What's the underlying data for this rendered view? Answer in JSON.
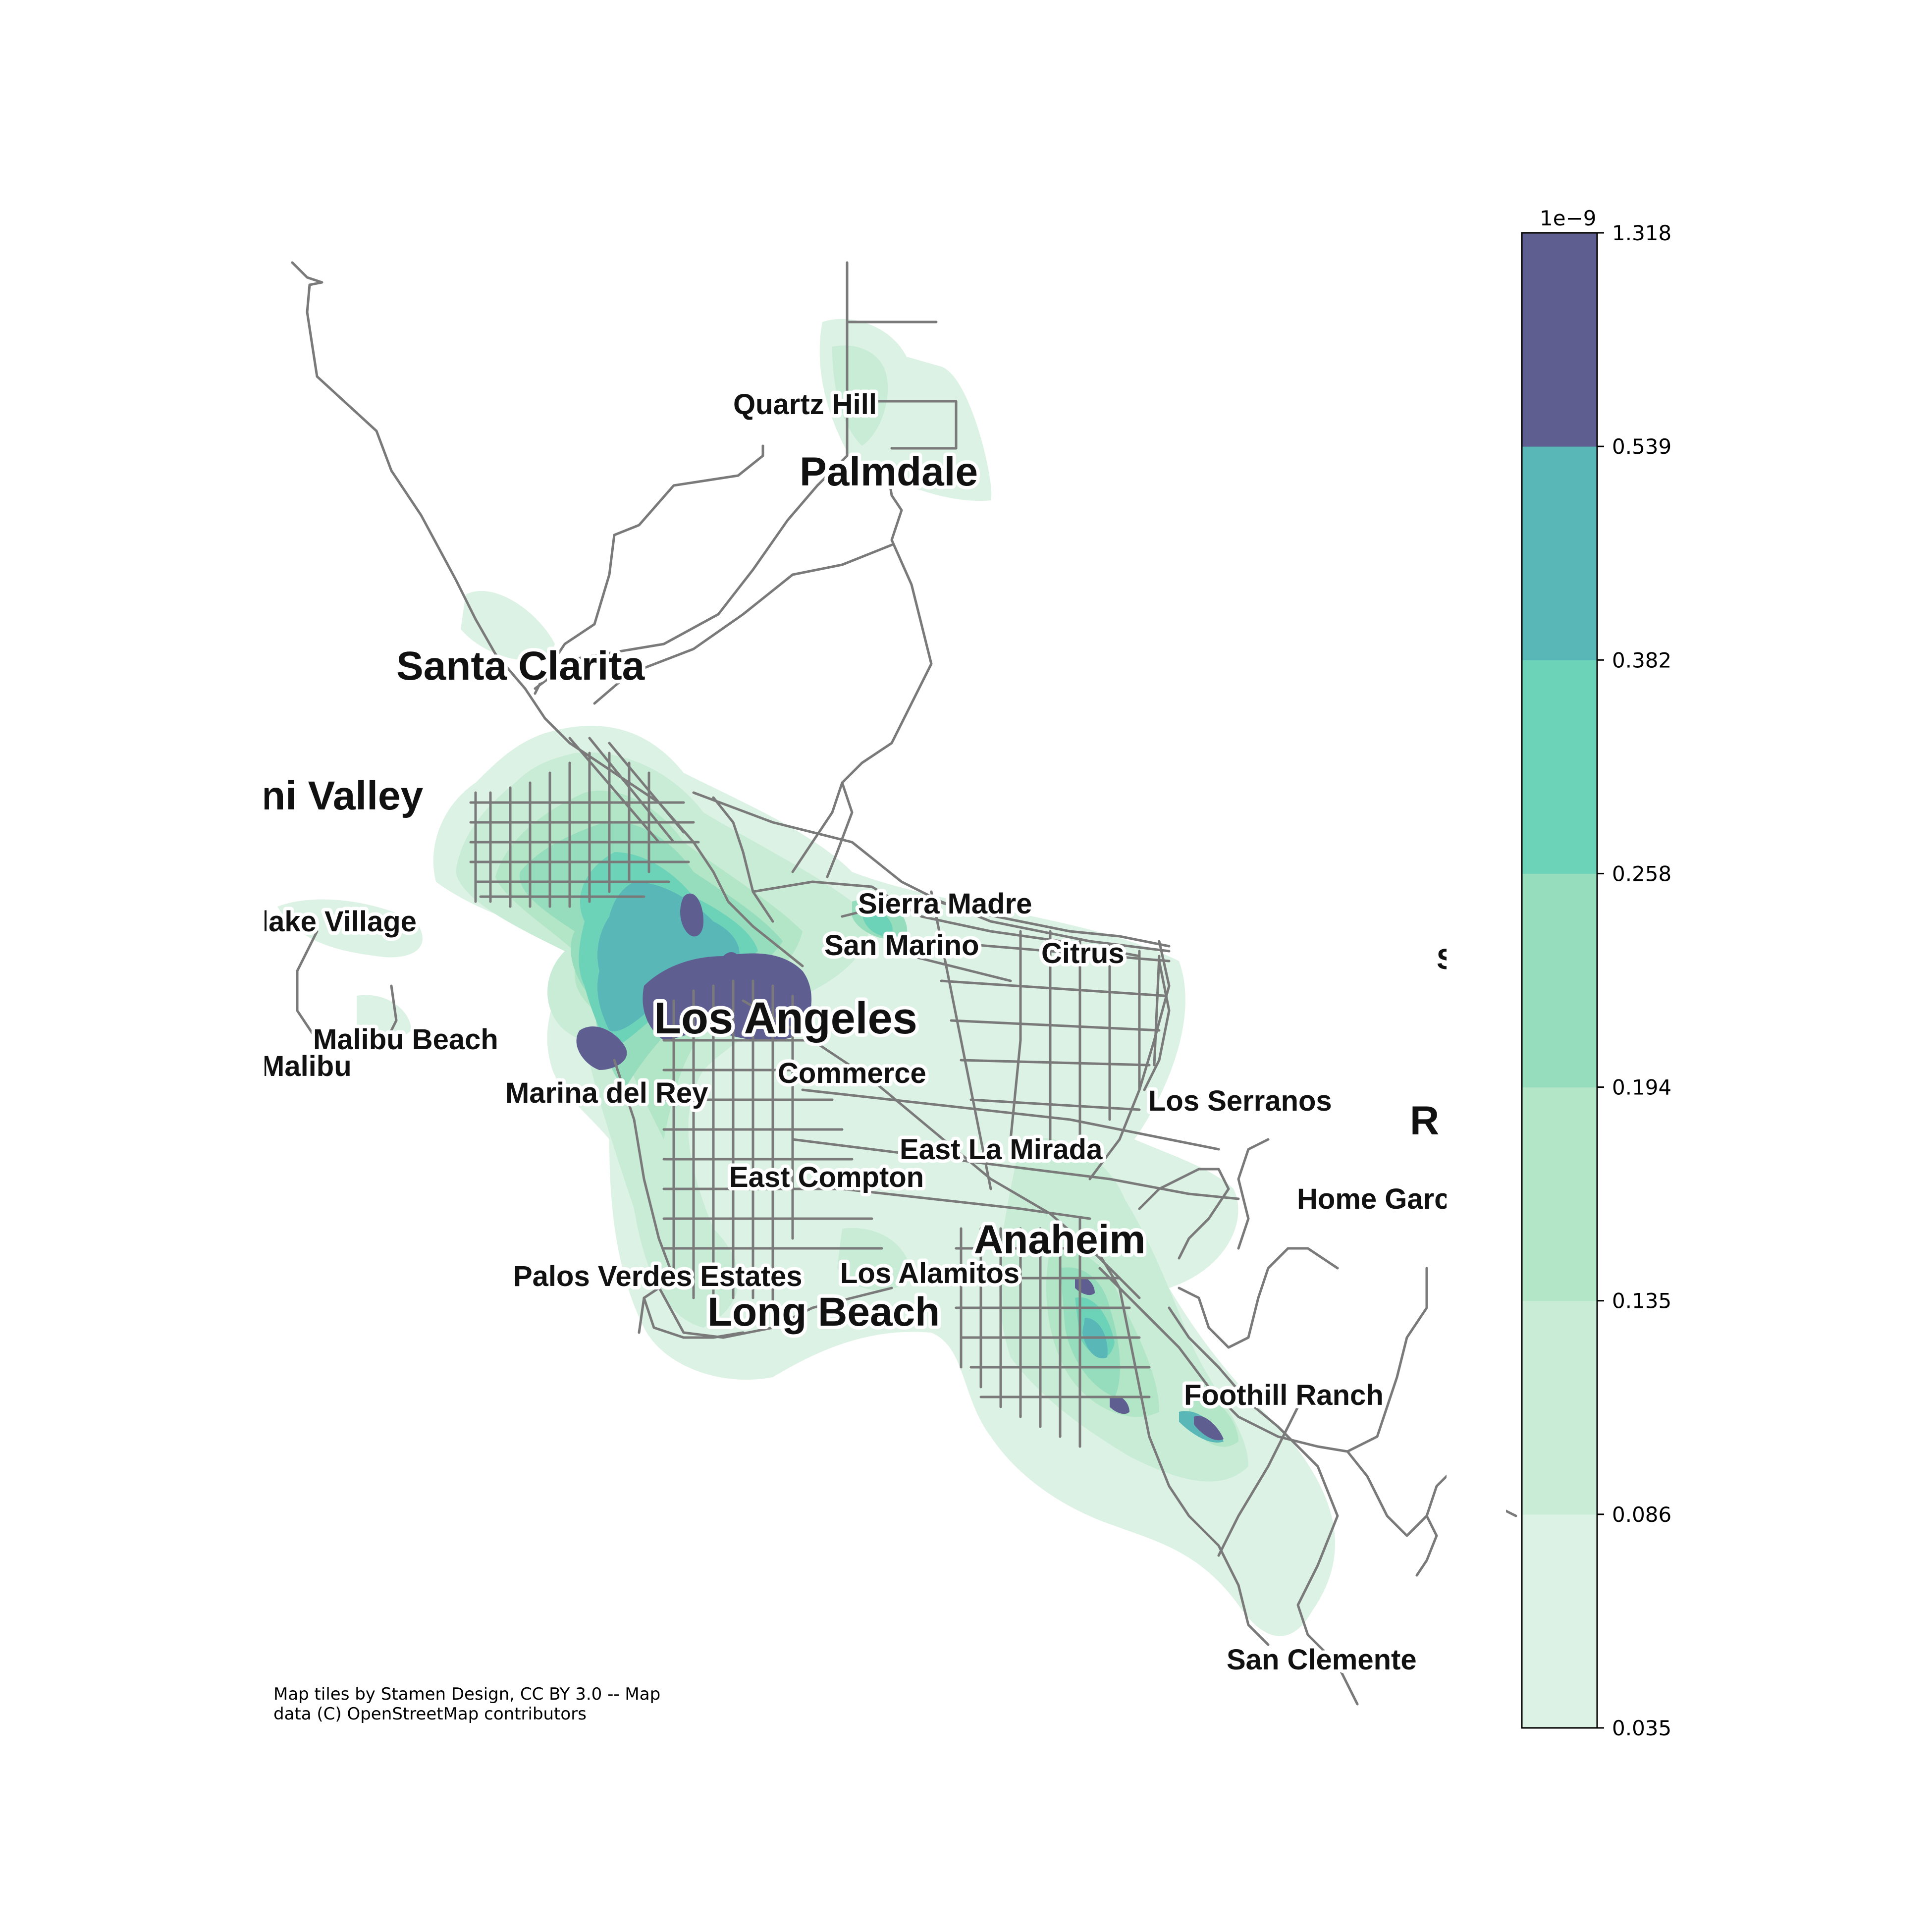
{
  "colors": {
    "background": "#ffffff",
    "road": "#7a7a7a",
    "density_levels": [
      "#dcf2e4",
      "#c8ecd5",
      "#b3e5c7",
      "#95ddbd",
      "#6dd3b8",
      "#59b7b7",
      "#5f5e91"
    ]
  },
  "map": {
    "places": [
      {
        "name": "Quartz Hill",
        "size": "small"
      },
      {
        "name": "Palmdale",
        "size": "large"
      },
      {
        "name": "Santa Clarita",
        "size": "large"
      },
      {
        "name": "ni Valley",
        "size": "large"
      },
      {
        "name": "Sierra Madre",
        "size": "small"
      },
      {
        "name": "San Marino",
        "size": "small"
      },
      {
        "name": "Citrus",
        "size": "small"
      },
      {
        "name": "lake Village",
        "size": "small"
      },
      {
        "name": "Malibu Beach",
        "size": "small"
      },
      {
        "name": "Malibu",
        "size": "small"
      },
      {
        "name": "Los Angeles",
        "size": "large"
      },
      {
        "name": "Commerce",
        "size": "small"
      },
      {
        "name": "Marina del Rey",
        "size": "small"
      },
      {
        "name": "Los Serranos",
        "size": "small"
      },
      {
        "name": "R",
        "size": "large"
      },
      {
        "name": "S",
        "size": "small"
      },
      {
        "name": "East La Mirada",
        "size": "small"
      },
      {
        "name": "East Compton",
        "size": "small"
      },
      {
        "name": "Home Garc",
        "size": "small"
      },
      {
        "name": "Anaheim",
        "size": "large"
      },
      {
        "name": "Palos Verdes Estates",
        "size": "small"
      },
      {
        "name": "Los Alamitos",
        "size": "small"
      },
      {
        "name": "Long Beach",
        "size": "large"
      },
      {
        "name": "Foothill Ranch",
        "size": "small"
      },
      {
        "name": "San Clemente",
        "size": "small"
      }
    ],
    "attribution_line1": "Map tiles by Stamen Design, CC BY 3.0 -- Map",
    "attribution_line2": "data (C) OpenStreetMap contributors"
  },
  "chart_data": {
    "type": "heatmap",
    "colorbar": {
      "multiplier_label": "1e−9",
      "levels": [
        0.035,
        0.086,
        0.135,
        0.194,
        0.258,
        0.382,
        0.539,
        1.318
      ],
      "tick_labels": [
        "0.035",
        "0.086",
        "0.135",
        "0.194",
        "0.258",
        "0.382",
        "0.539",
        "1.318"
      ]
    }
  }
}
